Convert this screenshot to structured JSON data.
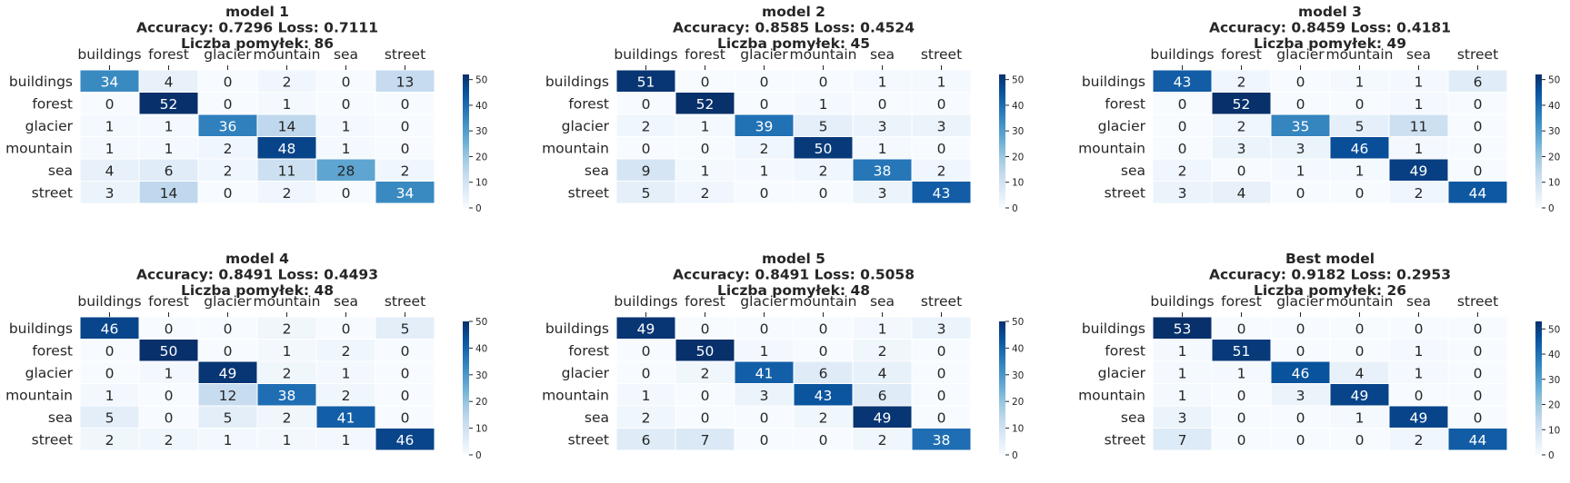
{
  "figure": {
    "colormap": [
      "#f7fbff",
      "#deebf7",
      "#c6dbef",
      "#9ecae1",
      "#6baed6",
      "#4292c6",
      "#2171b5",
      "#08519c",
      "#08306b"
    ]
  },
  "chart_data": [
    {
      "type": "heatmap",
      "title_lines": [
        "model 1",
        "Accuracy: 0.7296 Loss: 0.7111",
        "Liczba pomyłek: 86"
      ],
      "x_categories": [
        "buildings",
        "forest",
        "glacier",
        "mountain",
        "sea",
        "street"
      ],
      "y_categories": [
        "buildings",
        "forest",
        "glacier",
        "mountain",
        "sea",
        "street"
      ],
      "values": [
        [
          34,
          4,
          0,
          2,
          0,
          13
        ],
        [
          0,
          52,
          0,
          1,
          0,
          0
        ],
        [
          1,
          1,
          36,
          14,
          1,
          0
        ],
        [
          1,
          1,
          2,
          48,
          1,
          0
        ],
        [
          4,
          6,
          2,
          11,
          28,
          2
        ],
        [
          3,
          14,
          0,
          2,
          0,
          34
        ]
      ],
      "colorbar": {
        "vmin": 0,
        "vmax": 52,
        "ticks": [
          0,
          10,
          20,
          30,
          40,
          50
        ]
      },
      "xaxis_position": "top",
      "grid": false
    },
    {
      "type": "heatmap",
      "title_lines": [
        "model 2",
        "Accuracy: 0.8585 Loss: 0.4524",
        "Liczba pomyłek: 45"
      ],
      "x_categories": [
        "buildings",
        "forest",
        "glacier",
        "mountain",
        "sea",
        "street"
      ],
      "y_categories": [
        "buildings",
        "forest",
        "glacier",
        "mountain",
        "sea",
        "street"
      ],
      "values": [
        [
          51,
          0,
          0,
          0,
          1,
          1
        ],
        [
          0,
          52,
          0,
          1,
          0,
          0
        ],
        [
          2,
          1,
          39,
          5,
          3,
          3
        ],
        [
          0,
          0,
          2,
          50,
          1,
          0
        ],
        [
          9,
          1,
          1,
          2,
          38,
          2
        ],
        [
          5,
          2,
          0,
          0,
          3,
          43
        ]
      ],
      "colorbar": {
        "vmin": 0,
        "vmax": 52,
        "ticks": [
          0,
          10,
          20,
          30,
          40,
          50
        ]
      },
      "xaxis_position": "top",
      "grid": false
    },
    {
      "type": "heatmap",
      "title_lines": [
        "model 3",
        "Accuracy: 0.8459 Loss: 0.4181",
        "Liczba pomyłek: 49"
      ],
      "x_categories": [
        "buildings",
        "forest",
        "glacier",
        "mountain",
        "sea",
        "street"
      ],
      "y_categories": [
        "buildings",
        "forest",
        "glacier",
        "mountain",
        "sea",
        "street"
      ],
      "values": [
        [
          43,
          2,
          0,
          1,
          1,
          6
        ],
        [
          0,
          52,
          0,
          0,
          1,
          0
        ],
        [
          0,
          2,
          35,
          5,
          11,
          0
        ],
        [
          0,
          3,
          3,
          46,
          1,
          0
        ],
        [
          2,
          0,
          1,
          1,
          49,
          0
        ],
        [
          3,
          4,
          0,
          0,
          2,
          44
        ]
      ],
      "colorbar": {
        "vmin": 0,
        "vmax": 52,
        "ticks": [
          0,
          10,
          20,
          30,
          40,
          50
        ]
      },
      "xaxis_position": "top",
      "grid": false
    },
    {
      "type": "heatmap",
      "title_lines": [
        "model 4",
        "Accuracy: 0.8491 Loss: 0.4493",
        "Liczba pomyłek: 48"
      ],
      "x_categories": [
        "buildings",
        "forest",
        "glacier",
        "mountain",
        "sea",
        "street"
      ],
      "y_categories": [
        "buildings",
        "forest",
        "glacier",
        "mountain",
        "sea",
        "street"
      ],
      "values": [
        [
          46,
          0,
          0,
          2,
          0,
          5
        ],
        [
          0,
          50,
          0,
          1,
          2,
          0
        ],
        [
          0,
          1,
          49,
          2,
          1,
          0
        ],
        [
          1,
          0,
          12,
          38,
          2,
          0
        ],
        [
          5,
          0,
          5,
          2,
          41,
          0
        ],
        [
          2,
          2,
          1,
          1,
          1,
          46
        ]
      ],
      "colorbar": {
        "vmin": 0,
        "vmax": 50,
        "ticks": [
          0,
          10,
          20,
          30,
          40,
          50
        ]
      },
      "xaxis_position": "top",
      "grid": false
    },
    {
      "type": "heatmap",
      "title_lines": [
        "model 5",
        "Accuracy: 0.8491 Loss: 0.5058",
        "Liczba pomyłek: 48"
      ],
      "x_categories": [
        "buildings",
        "forest",
        "glacier",
        "mountain",
        "sea",
        "street"
      ],
      "y_categories": [
        "buildings",
        "forest",
        "glacier",
        "mountain",
        "sea",
        "street"
      ],
      "values": [
        [
          49,
          0,
          0,
          0,
          1,
          3
        ],
        [
          0,
          50,
          1,
          0,
          2,
          0
        ],
        [
          0,
          2,
          41,
          6,
          4,
          0
        ],
        [
          1,
          0,
          3,
          43,
          6,
          0
        ],
        [
          2,
          0,
          0,
          2,
          49,
          0
        ],
        [
          6,
          7,
          0,
          0,
          2,
          38
        ]
      ],
      "colorbar": {
        "vmin": 0,
        "vmax": 50,
        "ticks": [
          0,
          10,
          20,
          30,
          40,
          50
        ]
      },
      "xaxis_position": "top",
      "grid": false
    },
    {
      "type": "heatmap",
      "title_lines": [
        "Best model",
        "Accuracy: 0.9182 Loss: 0.2953",
        "Liczba pomyłek: 26"
      ],
      "x_categories": [
        "buildings",
        "forest",
        "glacier",
        "mountain",
        "sea",
        "street"
      ],
      "y_categories": [
        "buildings",
        "forest",
        "glacier",
        "mountain",
        "sea",
        "street"
      ],
      "values": [
        [
          53,
          0,
          0,
          0,
          0,
          0
        ],
        [
          1,
          51,
          0,
          0,
          1,
          0
        ],
        [
          1,
          1,
          46,
          4,
          1,
          0
        ],
        [
          1,
          0,
          3,
          49,
          0,
          0
        ],
        [
          3,
          0,
          0,
          1,
          49,
          0
        ],
        [
          7,
          0,
          0,
          0,
          2,
          44
        ]
      ],
      "colorbar": {
        "vmin": 0,
        "vmax": 53,
        "ticks": [
          0,
          10,
          20,
          30,
          40,
          50
        ]
      },
      "xaxis_position": "top",
      "grid": false
    }
  ]
}
